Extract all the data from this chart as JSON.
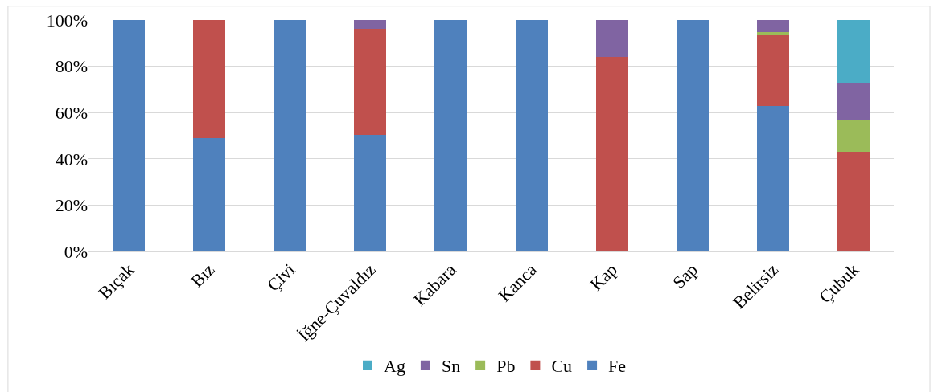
{
  "chart_data": {
    "type": "bar",
    "stacked": true,
    "categories": [
      "Bıçak",
      "Bız",
      "Çivi",
      "İğne-Çuvaldız",
      "Kabara",
      "Kanca",
      "Kap",
      "Sap",
      "Belirsiz",
      "Çubuk"
    ],
    "series": [
      {
        "name": "Fe",
        "color": "#4f81bd",
        "values": [
          100,
          49,
          100,
          50.5,
          100,
          100,
          0,
          100,
          63,
          0
        ]
      },
      {
        "name": "Cu",
        "color": "#c0504d",
        "values": [
          0,
          51,
          0,
          45.7,
          0,
          0,
          84,
          0,
          30.5,
          43
        ]
      },
      {
        "name": "Pb",
        "color": "#9bbb59",
        "values": [
          0,
          0,
          0,
          0,
          0,
          0,
          0,
          0,
          1.3,
          14
        ]
      },
      {
        "name": "Sn",
        "color": "#8064a2",
        "values": [
          0,
          0,
          0,
          3.8,
          0,
          0,
          16,
          0,
          5.2,
          16
        ]
      },
      {
        "name": "Ag",
        "color": "#4bacc6",
        "values": [
          0,
          0,
          0,
          0,
          0,
          0,
          0,
          0,
          0,
          27
        ]
      }
    ],
    "ylim": [
      0,
      100
    ],
    "yticks": [
      {
        "value": 0,
        "label": "0%"
      },
      {
        "value": 20,
        "label": "20%"
      },
      {
        "value": 40,
        "label": "40%"
      },
      {
        "value": 60,
        "label": "60%"
      },
      {
        "value": 80,
        "label": "80%"
      },
      {
        "value": 100,
        "label": "100%"
      }
    ],
    "grid": "y",
    "legend": "bottom"
  }
}
